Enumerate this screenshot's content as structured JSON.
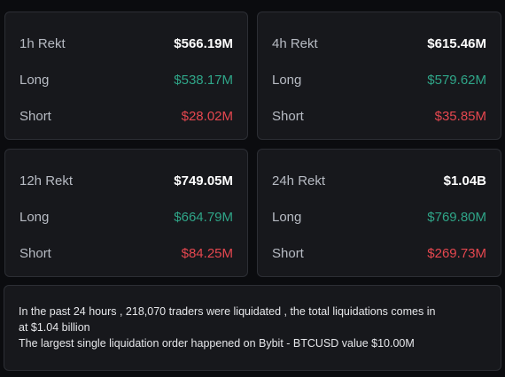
{
  "cards": [
    {
      "header_label": "1h Rekt",
      "header_value": "$566.19M",
      "long_label": "Long",
      "long_value": "$538.17M",
      "short_label": "Short",
      "short_value": "$28.02M"
    },
    {
      "header_label": "4h Rekt",
      "header_value": "$615.46M",
      "long_label": "Long",
      "long_value": "$579.62M",
      "short_label": "Short",
      "short_value": "$35.85M"
    },
    {
      "header_label": "12h Rekt",
      "header_value": "$749.05M",
      "long_label": "Long",
      "long_value": "$664.79M",
      "short_label": "Short",
      "short_value": "$84.25M"
    },
    {
      "header_label": "24h Rekt",
      "header_value": "$1.04B",
      "long_label": "Long",
      "long_value": "$769.80M",
      "short_label": "Short",
      "short_value": "$269.73M"
    }
  ],
  "summary": {
    "line1": "In the past 24 hours , 218,070 traders were liquidated , the total liquidations comes in",
    "line2": "at $1.04 billion",
    "line3": "The largest single liquidation order happened on Bybit - BTCUSD value $10.00M"
  },
  "colors": {
    "background": "#0b0c0f",
    "card": "#17181c",
    "border": "#2c2e34",
    "long": "#2fa588",
    "short": "#e5474f",
    "label": "#b7bbc3",
    "value": "#ffffff"
  }
}
